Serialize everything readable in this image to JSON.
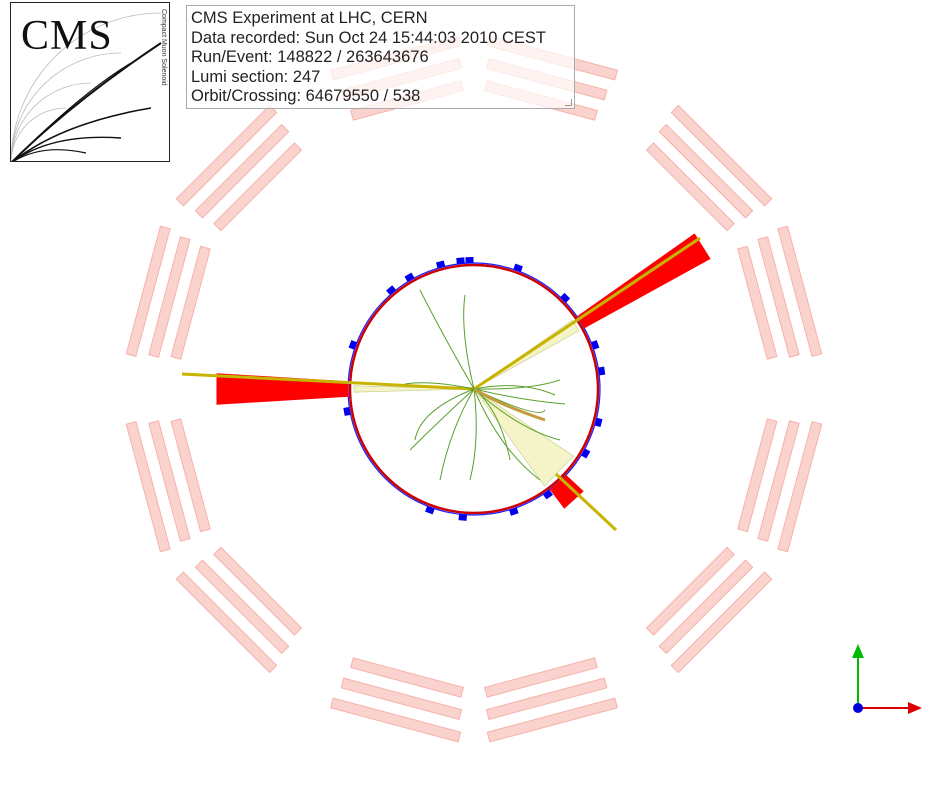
{
  "info": {
    "lines": [
      "CMS Experiment at LHC, CERN",
      "Data recorded: Sun Oct 24 15:44:03 2010 CEST",
      "Run/Event: 148822 / 263643676",
      "Lumi section: 247",
      "Orbit/Crossing: 64679550 / 538"
    ]
  },
  "logo": {
    "text": "CMS",
    "vertical": "Compact Muon Solenoid"
  },
  "colors": {
    "muon_chambers": "#fbd3ce",
    "muon_chamber_stroke": "#f5b2aa",
    "ecal": "#ff0000",
    "hcal": "#0000ee",
    "jets": "#f4f4c8",
    "tracks": "#5aa02c",
    "track_highlight": "#c49a3c",
    "muon_track": "#c8b400",
    "axis_x": "#dd0000",
    "axis_y": "#00bb00",
    "axis_origin": "#0000dd"
  },
  "icons": [
    "axis-icon"
  ]
}
